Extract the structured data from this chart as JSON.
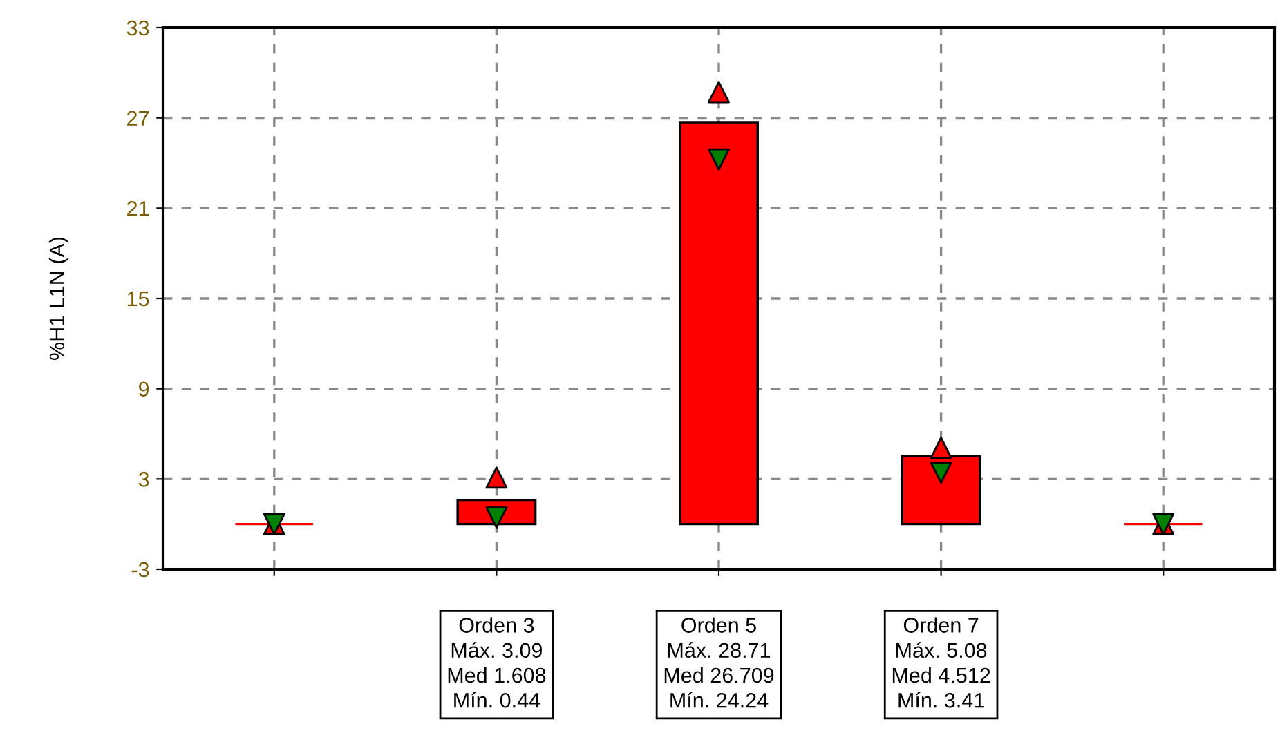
{
  "chart_data": {
    "type": "bar",
    "ylabel": "%H1 L1N (A)",
    "categories": [
      null,
      null,
      null,
      null,
      null
    ],
    "series": [
      {
        "name": null,
        "color": "#ff0000",
        "values": [
          0,
          1.608,
          26.709,
          4.512,
          0
        ]
      },
      {
        "name": null,
        "type": "scatter",
        "marker": "triangle",
        "color": "#ff0000",
        "values": [
          0,
          3.09,
          28.71,
          5.08,
          0
        ]
      },
      {
        "name": null,
        "type": "scatter",
        "marker": "triangle-down",
        "color": "#008000",
        "values": [
          0,
          0.44,
          24.24,
          3.41,
          0
        ]
      }
    ],
    "ylim": [
      -3,
      33
    ],
    "yticks": [
      -3,
      3,
      9,
      15,
      21,
      27,
      33
    ],
    "grid": true,
    "legend": false,
    "annotations": [
      "Orden 3\nMáx. 3.09\nMed 1.608\nMín. 0.44",
      "Orden 5\nMáx. 28.71\nMed 26.709\nMín. 24.24",
      "Orden 7\nMáx. 5.08\nMed 4.512\nMín. 3.41"
    ]
  }
}
